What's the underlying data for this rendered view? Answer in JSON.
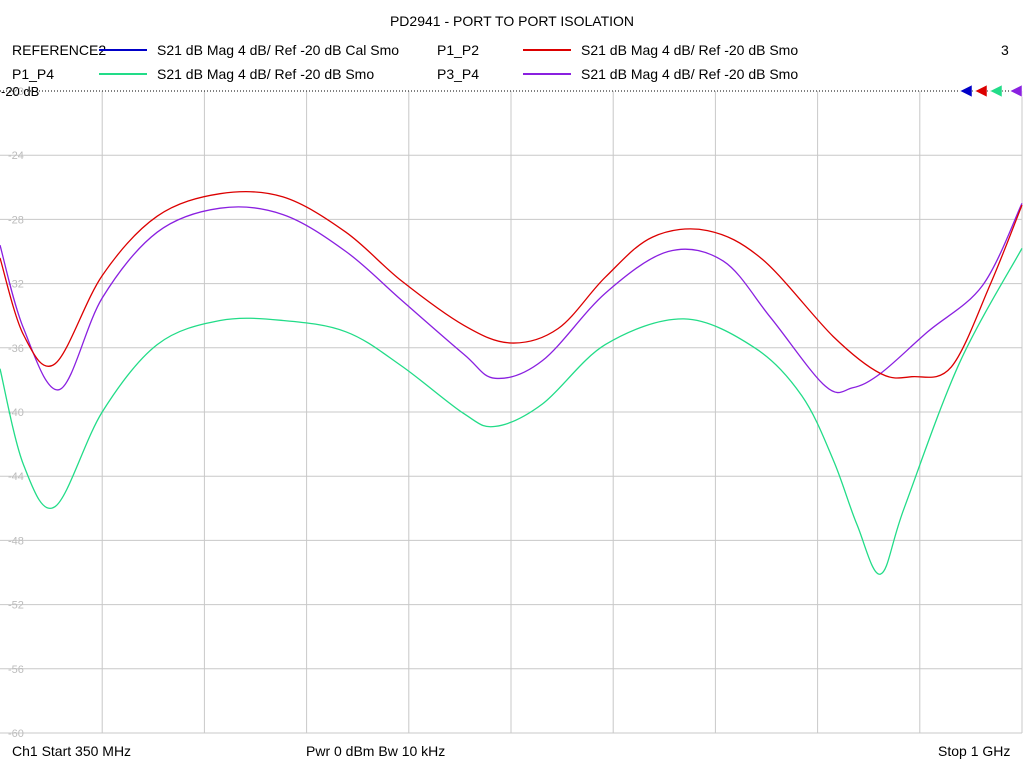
{
  "title": "PD2941 - PORT TO PORT ISOLATION",
  "trace_count": "3",
  "legend": [
    {
      "name": "REFERENCE2",
      "desc": "S21  dB Mag  4 dB/ Ref -20 dB  Cal Smo",
      "color": "#0000c8"
    },
    {
      "name": "P1_P2",
      "desc": "S21  dB Mag  4 dB/ Ref -20 dB  Smo",
      "color": "#dc0000"
    },
    {
      "name": "P1_P4",
      "desc": "S21  dB Mag  4 dB/ Ref -20 dB  Smo",
      "color": "#22dc88"
    },
    {
      "name": "P3_P4",
      "desc": "S21  dB Mag  4 dB/ Ref -20 dB  Smo",
      "color": "#8a20e0"
    }
  ],
  "footer": {
    "channel": "Ch1  Start  350 MHz",
    "power": "Pwr  0 dBm  Bw  10 kHz",
    "stop": "Stop  1 GHz"
  },
  "chart_data": {
    "type": "line",
    "ref_label": "-20 dB",
    "x_range_mhz": [
      350,
      1000
    ],
    "ylim": [
      -60,
      -20
    ],
    "y_ticks": [
      -20,
      -24,
      -28,
      -32,
      -36,
      -40,
      -44,
      -48,
      -52,
      -56,
      -60
    ],
    "x_divisions": 10,
    "grid": true,
    "series": [
      {
        "name": "P1_P2",
        "color": "#dc0000",
        "x": [
          350,
          365,
          385,
          415,
          450,
          490,
          530,
          570,
          605,
          645,
          675,
          705,
          735,
          765,
          800,
          835,
          880,
          910,
          930,
          955,
          980,
          1000
        ],
        "y": [
          -30.4,
          -35.2,
          -37.0,
          -31.5,
          -27.8,
          -26.4,
          -26.6,
          -28.8,
          -31.8,
          -34.6,
          -35.7,
          -34.8,
          -31.6,
          -29.1,
          -28.7,
          -30.5,
          -35.3,
          -37.6,
          -37.8,
          -37.2,
          -32.0,
          -27.1
        ]
      },
      {
        "name": "P1_P4",
        "color": "#22dc88",
        "x": [
          350,
          365,
          385,
          415,
          450,
          490,
          530,
          570,
          605,
          645,
          665,
          695,
          735,
          785,
          830,
          860,
          880,
          895,
          910,
          925,
          960,
          1000
        ],
        "y": [
          -37.3,
          -43.3,
          -45.9,
          -40.0,
          -35.8,
          -34.3,
          -34.3,
          -35.0,
          -37.1,
          -40.1,
          -40.9,
          -39.5,
          -35.8,
          -34.2,
          -36.0,
          -39.0,
          -43.0,
          -47.0,
          -50.1,
          -46.0,
          -37.0,
          -29.8
        ]
      },
      {
        "name": "P3_P4",
        "color": "#8a20e0",
        "x": [
          350,
          365,
          388,
          415,
          450,
          490,
          530,
          570,
          605,
          645,
          665,
          695,
          735,
          775,
          810,
          840,
          875,
          892,
          910,
          940,
          975,
          1000
        ],
        "y": [
          -29.6,
          -34.8,
          -38.6,
          -32.9,
          -28.8,
          -27.3,
          -27.7,
          -30.0,
          -33.0,
          -36.4,
          -37.9,
          -36.8,
          -32.6,
          -30.0,
          -30.6,
          -34.1,
          -38.4,
          -38.5,
          -37.6,
          -35.0,
          -32.1,
          -27.0
        ]
      }
    ]
  }
}
